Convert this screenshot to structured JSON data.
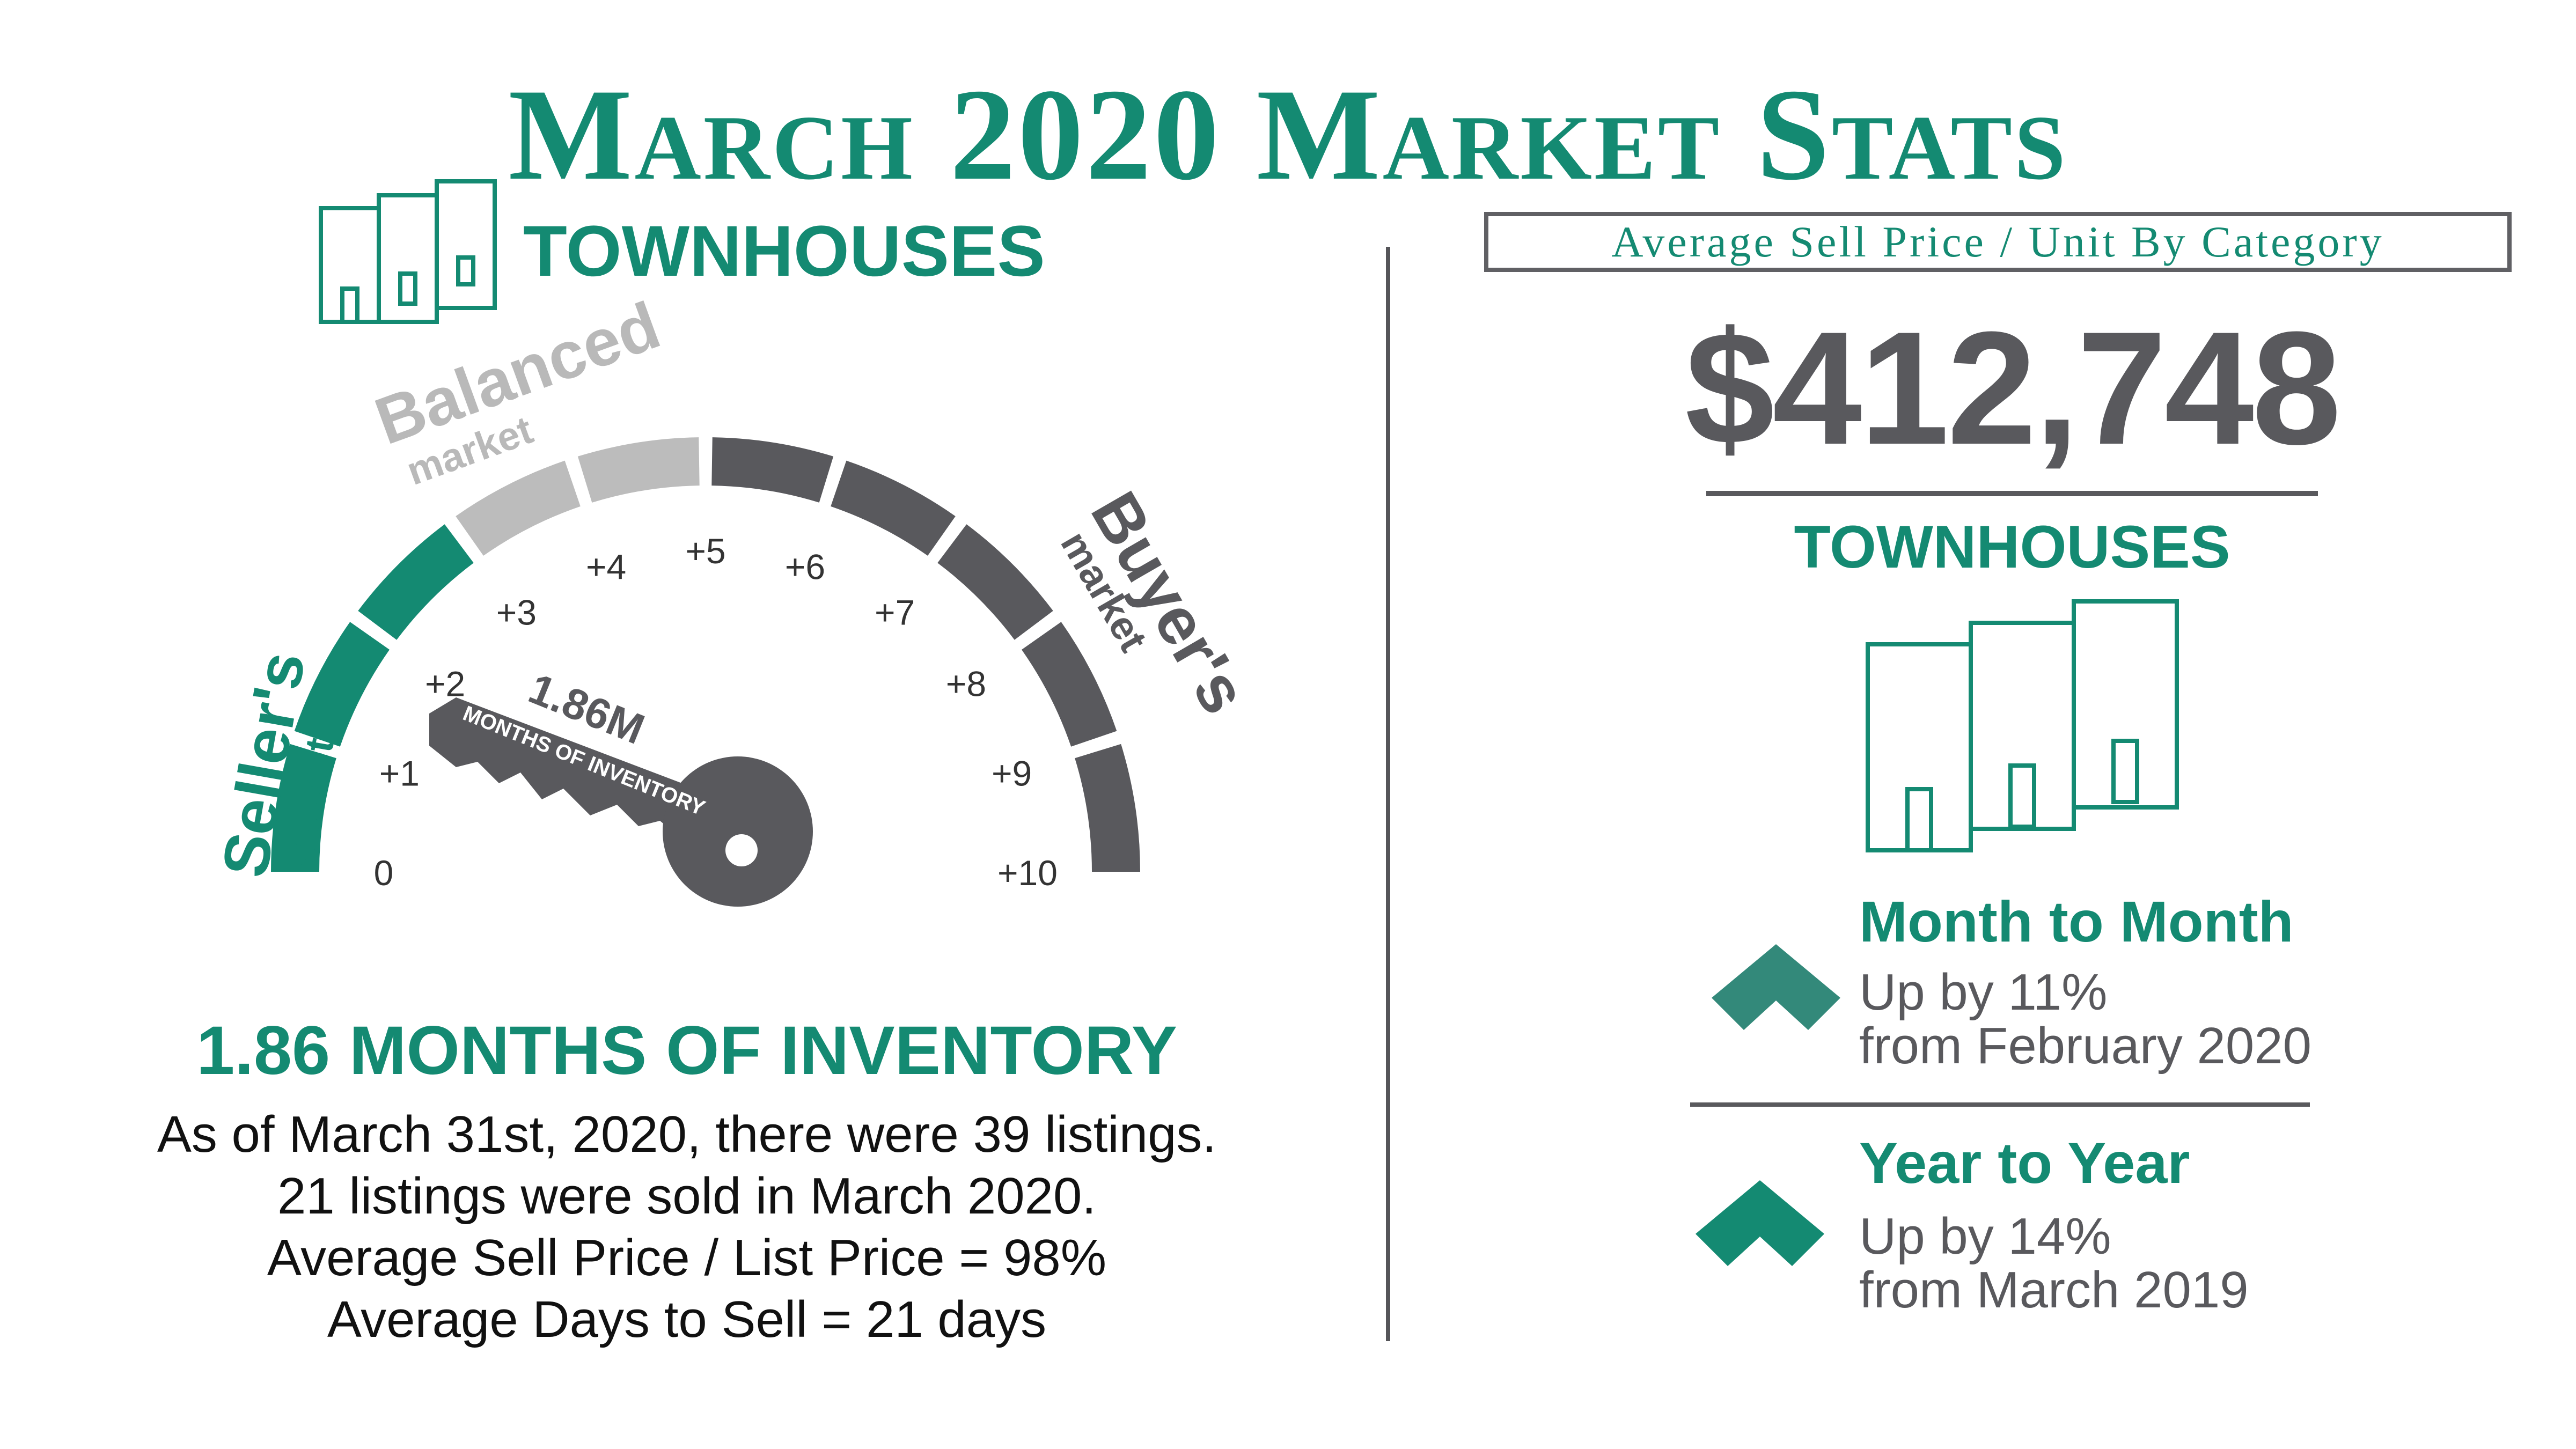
{
  "title": "March 2020 Market Stats",
  "colors": {
    "accent": "#148a72",
    "gray": "#59595d",
    "light_gray": "#bcbcbc"
  },
  "left": {
    "category_label": "TOWNHOUSES",
    "category_icon": "townhouses-icon",
    "gauge": {
      "zones": {
        "seller_title": "Seller's",
        "seller_sub": "market",
        "balanced_title": "Balanced",
        "balanced_sub": "market",
        "buyer_title": "Buyer's",
        "buyer_sub": "market"
      },
      "scale_min": 0,
      "scale_max": 10,
      "tick_labels": [
        "0",
        "+1",
        "+2",
        "+3",
        "+4",
        "+5",
        "+6",
        "+7",
        "+8",
        "+9",
        "+10"
      ],
      "value": 1.86,
      "pointer_value_label": "1.86M",
      "pointer_caption": "MONTHS OF INVENTORY",
      "pointer_icon": "key-icon"
    },
    "inventory_heading": "1.86 MONTHS OF INVENTORY",
    "details": [
      "As of March 31st, 2020, there were 39 listings.",
      "21 listings were sold in March 2020.",
      "Average Sell Price / List Price = 98%",
      "Average Days to Sell = 21 days"
    ]
  },
  "right": {
    "category_box_label": "Average Sell Price / Unit By Category",
    "price": "$412,748",
    "category_label": "TOWNHOUSES",
    "category_icon": "townhouses-icon",
    "month_to_month": {
      "title": "Month to Month",
      "line1": "Up by 11%",
      "line2": "from February 2020",
      "icon": "chevron-up-icon"
    },
    "year_to_year": {
      "title": "Year to Year",
      "line1": "Up by 14%",
      "line2": "from March 2019",
      "icon": "chevron-up-icon"
    }
  }
}
